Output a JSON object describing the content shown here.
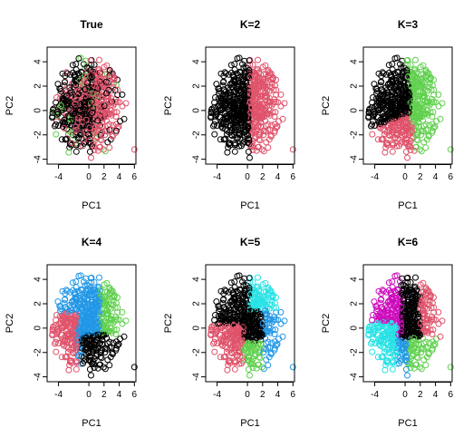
{
  "figure": {
    "description_type": "grid of 6 PCA scatter plots (2 rows x 3 columns) comparing true labels with k-means clusterings",
    "layout": "2 rows x 3 columns"
  },
  "colors": {
    "black": "#000000",
    "red": "#DF536B",
    "green": "#61D04F",
    "blue": "#2297E6",
    "cyan": "#28E2E5",
    "magenta": "#CD0BBC"
  },
  "chart_data": [
    {
      "type": "scatter",
      "title": "True",
      "xlabel": "PC1",
      "ylabel": "PC2",
      "xlim": [
        -5.5,
        6.2
      ],
      "ylim": [
        -4.4,
        5.2
      ],
      "xticks": [
        -4,
        0,
        2,
        4,
        6
      ],
      "yticks": [
        -4,
        -2,
        0,
        2,
        4
      ],
      "point_style": "open circle",
      "series": [
        {
          "cluster": 1,
          "color": "#000000",
          "region": "whole cloud, dominant on left half"
        },
        {
          "cluster": 2,
          "color": "#DF536B",
          "region": "whole cloud, dominant on right half"
        },
        {
          "cluster": 3,
          "color": "#61D04F",
          "region": "scattered sparse points"
        }
      ]
    },
    {
      "type": "scatter",
      "title": "K=2",
      "xlabel": "PC1",
      "ylabel": "PC2",
      "xlim": [
        -5.5,
        6.2
      ],
      "ylim": [
        -4.4,
        5.2
      ],
      "xticks": [
        -4,
        0,
        2,
        4,
        6
      ],
      "yticks": [
        -4,
        -2,
        0,
        2,
        4
      ],
      "point_style": "open circle",
      "series": [
        {
          "cluster": 1,
          "color": "#000000",
          "region": "PC1 < ~0.3"
        },
        {
          "cluster": 2,
          "color": "#DF536B",
          "region": "PC1 > ~0.3"
        }
      ]
    },
    {
      "type": "scatter",
      "title": "K=3",
      "xlabel": "PC1",
      "ylabel": "PC2",
      "xlim": [
        -5.5,
        6.2
      ],
      "ylim": [
        -4.4,
        5.2
      ],
      "xticks": [
        -4,
        0,
        2,
        4,
        6
      ],
      "yticks": [
        -4,
        -2,
        0,
        2,
        4
      ],
      "point_style": "open circle",
      "series": [
        {
          "cluster": 1,
          "color": "#000000",
          "region": "upper left"
        },
        {
          "cluster": 2,
          "color": "#DF536B",
          "region": "lower left"
        },
        {
          "cluster": 3,
          "color": "#61D04F",
          "region": "right"
        }
      ]
    },
    {
      "type": "scatter",
      "title": "K=4",
      "xlabel": "PC1",
      "ylabel": "PC2",
      "xlim": [
        -5.5,
        6.2
      ],
      "ylim": [
        -4.4,
        5.2
      ],
      "xticks": [
        -4,
        0,
        2,
        4,
        6
      ],
      "yticks": [
        -4,
        -2,
        0,
        2,
        4
      ],
      "point_style": "open circle",
      "series": [
        {
          "cluster": 1,
          "color": "#000000",
          "region": "bottom"
        },
        {
          "cluster": 2,
          "color": "#DF536B",
          "region": "left"
        },
        {
          "cluster": 3,
          "color": "#61D04F",
          "region": "right"
        },
        {
          "cluster": 4,
          "color": "#2297E6",
          "region": "top"
        }
      ]
    },
    {
      "type": "scatter",
      "title": "K=5",
      "xlabel": "PC1",
      "ylabel": "PC2",
      "xlim": [
        -5.5,
        6.2
      ],
      "ylim": [
        -4.4,
        5.2
      ],
      "xticks": [
        -4,
        0,
        2,
        4,
        6
      ],
      "yticks": [
        -4,
        -2,
        0,
        2,
        4
      ],
      "point_style": "open circle",
      "series": [
        {
          "cluster": 1,
          "color": "#000000",
          "region": "upper left"
        },
        {
          "cluster": 2,
          "color": "#DF536B",
          "region": "lower left"
        },
        {
          "cluster": 3,
          "color": "#61D04F",
          "region": "bottom"
        },
        {
          "cluster": 4,
          "color": "#2297E6",
          "region": "right"
        },
        {
          "cluster": 5,
          "color": "#28E2E5",
          "region": "upper right"
        }
      ]
    },
    {
      "type": "scatter",
      "title": "K=6",
      "xlabel": "PC1",
      "ylabel": "PC2",
      "xlim": [
        -5.5,
        6.2
      ],
      "ylim": [
        -4.4,
        5.2
      ],
      "xticks": [
        -4,
        0,
        2,
        4,
        6
      ],
      "yticks": [
        -4,
        -2,
        0,
        2,
        4
      ],
      "point_style": "open circle",
      "series": [
        {
          "cluster": 1,
          "color": "#000000",
          "region": "upper middle"
        },
        {
          "cluster": 2,
          "color": "#DF536B",
          "region": "right"
        },
        {
          "cluster": 3,
          "color": "#61D04F",
          "region": "bottom right"
        },
        {
          "cluster": 4,
          "color": "#2297E6",
          "region": "bottom middle"
        },
        {
          "cluster": 5,
          "color": "#28E2E5",
          "region": "lower left"
        },
        {
          "cluster": 6,
          "color": "#CD0BBC",
          "region": "upper left"
        }
      ]
    }
  ]
}
